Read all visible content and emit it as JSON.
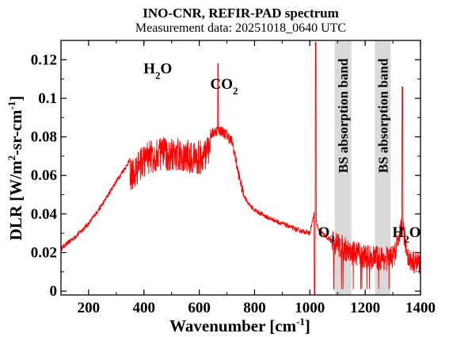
{
  "chart_data": {
    "type": "line",
    "title": "INO-CNR, REFIR-PAD spectrum",
    "subtitle": "Measurement data: 20251018_0640 UTC",
    "xlabel": {
      "main": "Wavenumber [cm",
      "sup": "-1",
      "end": "]"
    },
    "ylabel": {
      "p1": "DLR [W/m",
      "sup1": "2",
      "p2": "-sr-cm",
      "sup2": "-1",
      "end": "]"
    },
    "xlim": [
      100,
      1400
    ],
    "ylim": [
      -0.002,
      0.13
    ],
    "xticks": [
      200,
      400,
      600,
      800,
      1000,
      1200,
      1400
    ],
    "xtick_labels": [
      "200",
      "400",
      "600",
      "800",
      "1000",
      "1200",
      "1400"
    ],
    "yticks": [
      0,
      0.02,
      0.04,
      0.06,
      0.08,
      0.1,
      0.12
    ],
    "ytick_labels": [
      "0",
      "0.02",
      "0.04",
      "0.06",
      "0.08",
      "0.1",
      "0.12"
    ],
    "line_color": "#ff0000",
    "band_color": "#d9d9d9",
    "bands": [
      {
        "label": "BS absorption band",
        "x0": 1090,
        "x1": 1150
      },
      {
        "label": "BS absorption band",
        "x0": 1235,
        "x1": 1292
      }
    ],
    "annotations": [
      {
        "text": "H",
        "sub": "2",
        "tail": "O",
        "x": 450,
        "y": 0.113
      },
      {
        "text": "CO",
        "sub": "2",
        "tail": "",
        "x": 690,
        "y": 0.105
      },
      {
        "text": "O",
        "sub": "3",
        "tail": "",
        "x": 1060,
        "y": 0.028
      },
      {
        "text": "H",
        "sub": "2",
        "tail": "O",
        "x": 1350,
        "y": 0.028
      }
    ],
    "series": [
      {
        "x": [
          100,
          150,
          200,
          250,
          300,
          350,
          400,
          450,
          500,
          550,
          600,
          630,
          660,
          670,
          680,
          700,
          720,
          740,
          760,
          780,
          800,
          850,
          900,
          950,
          1000,
          1015,
          1030,
          1045,
          1060,
          1080,
          1100,
          1150,
          1200,
          1250,
          1300,
          1320,
          1335,
          1345,
          1360,
          1380,
          1400
        ],
        "y": [
          0.022,
          0.028,
          0.035,
          0.045,
          0.057,
          0.068,
          0.077,
          0.08,
          0.08,
          0.079,
          0.078,
          0.08,
          0.083,
          0.084,
          0.083,
          0.081,
          0.077,
          0.062,
          0.05,
          0.045,
          0.042,
          0.038,
          0.035,
          0.032,
          0.03,
          0.04,
          0.032,
          0.03,
          0.028,
          0.026,
          0.024,
          0.02,
          0.018,
          0.017,
          0.017,
          0.025,
          0.035,
          0.025,
          0.016,
          0.015,
          0.014
        ]
      }
    ]
  }
}
